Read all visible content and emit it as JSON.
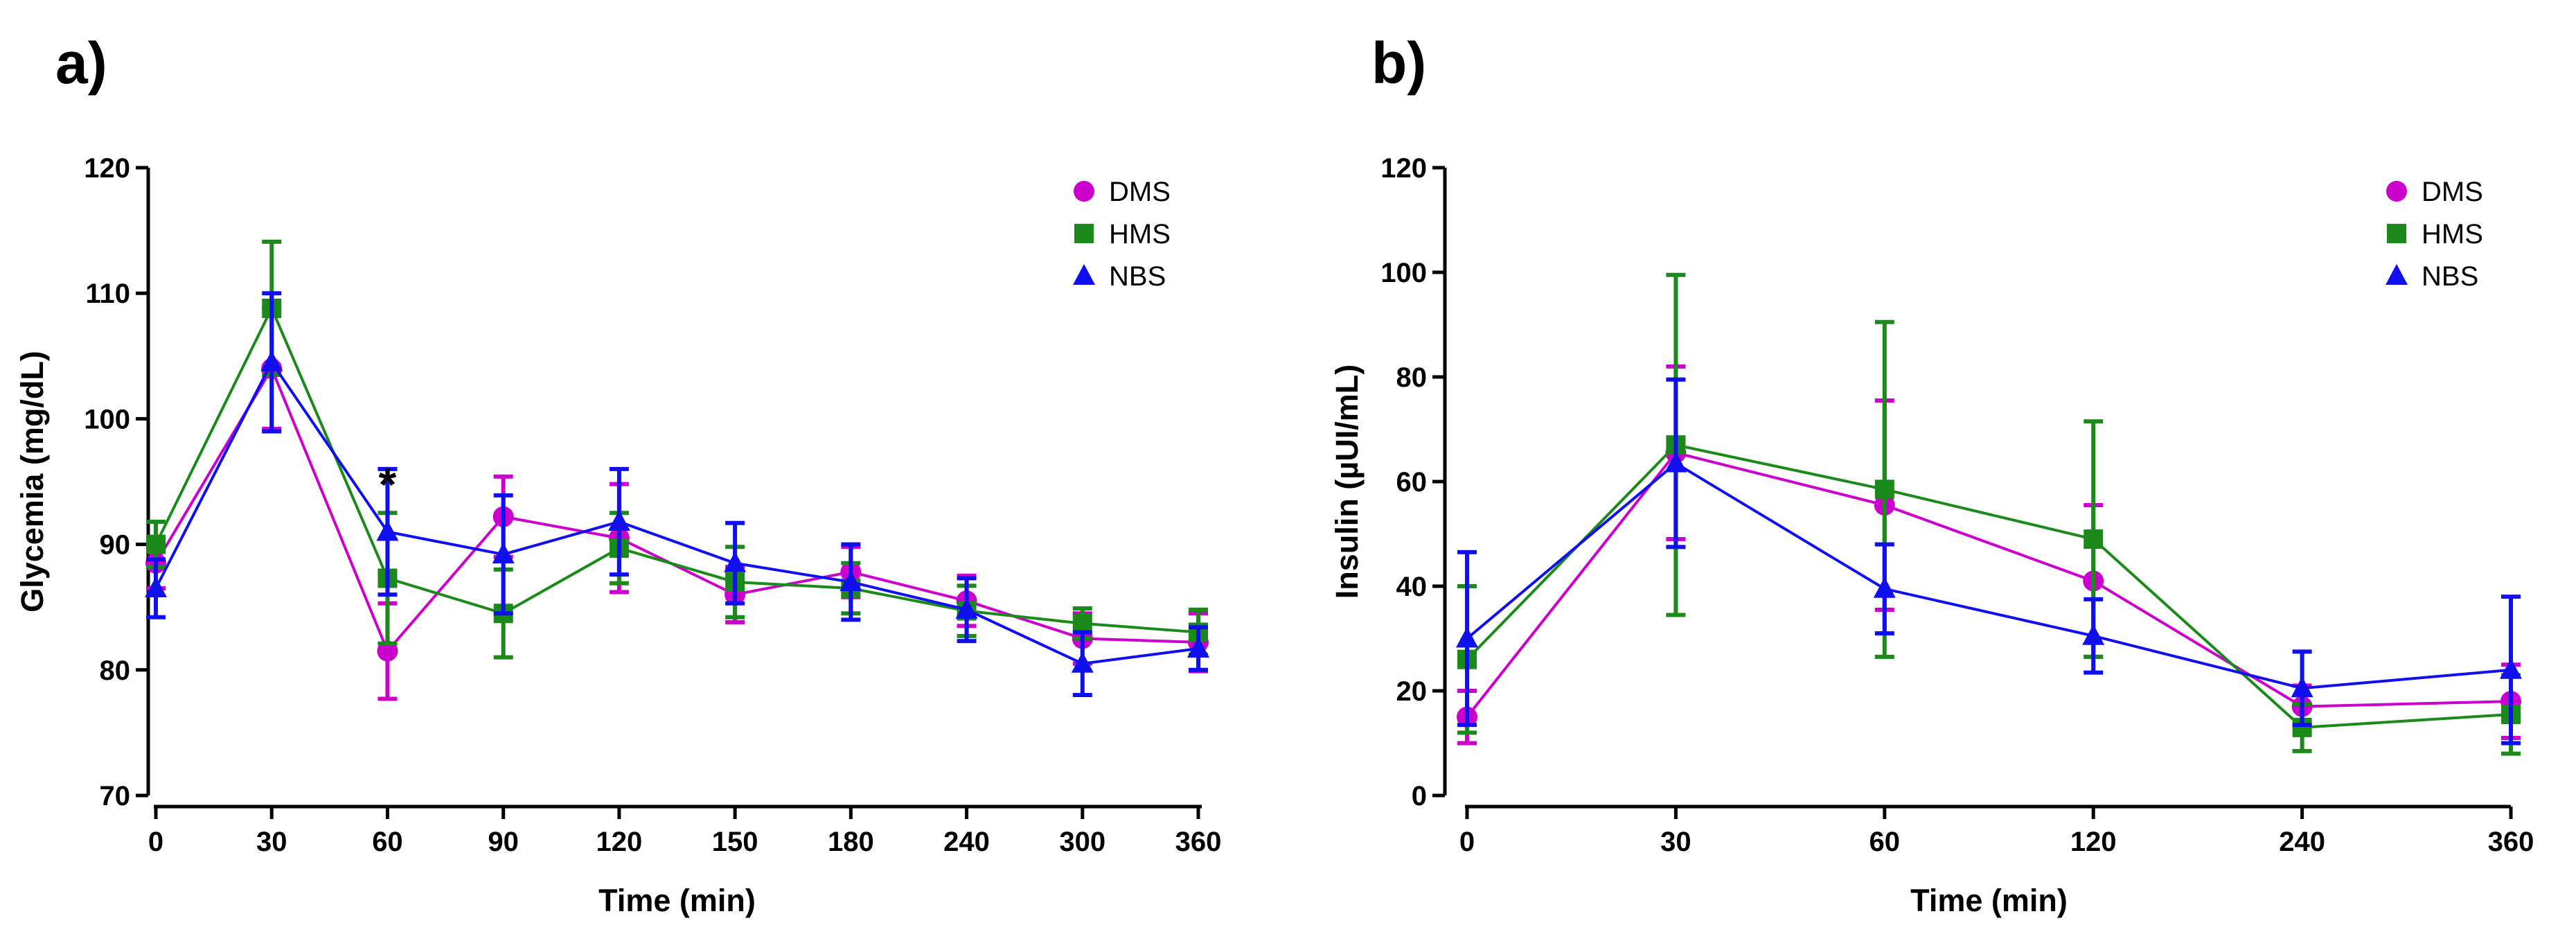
{
  "colors": {
    "DMS": "#CC00CC",
    "HMS": "#1B8A1B",
    "NBS": "#1010EE"
  },
  "chart_data": [
    {
      "panel_label": "a)",
      "type": "line",
      "xlabel": "Time (min)",
      "ylabel": "Glycemia (mg/dL)",
      "ylim": [
        70,
        120
      ],
      "yticks": [
        70,
        80,
        90,
        100,
        110,
        120
      ],
      "ytick_labels": [
        "70",
        "80",
        "90",
        "100",
        "110",
        "120"
      ],
      "categories": [
        "0",
        "30",
        "60",
        "90",
        "120",
        "150",
        "180",
        "240",
        "300",
        "360"
      ],
      "x_spacing": "categorical (evenly spaced)",
      "legend_position": "top-right",
      "annotations": [
        {
          "text": "*",
          "category": "60",
          "y": 95.5
        }
      ],
      "series": [
        {
          "name": "DMS",
          "marker": "circle",
          "values": [
            88.5,
            104.0,
            81.5,
            92.2,
            90.5,
            86.0,
            87.8,
            85.5,
            82.5,
            82.2
          ],
          "errors": [
            2.0,
            4.8,
            3.8,
            3.2,
            4.3,
            2.2,
            2.0,
            2.0,
            2.0,
            2.3
          ]
        },
        {
          "name": "HMS",
          "marker": "square",
          "values": [
            90.0,
            108.8,
            87.3,
            84.5,
            89.7,
            87.0,
            86.5,
            84.7,
            83.7,
            83.0
          ],
          "errors": [
            1.8,
            5.3,
            5.2,
            3.5,
            2.8,
            2.8,
            2.0,
            2.0,
            1.2,
            1.8
          ]
        },
        {
          "name": "NBS",
          "marker": "triangle",
          "values": [
            86.5,
            104.5,
            91.0,
            89.2,
            91.8,
            88.5,
            87.0,
            84.8,
            80.5,
            81.7
          ],
          "errors": [
            2.3,
            5.5,
            5.0,
            4.7,
            4.2,
            3.2,
            3.0,
            2.5,
            2.5,
            1.7
          ]
        }
      ]
    },
    {
      "panel_label": "b)",
      "type": "line",
      "xlabel": "Time (min)",
      "ylabel": "Insulin (µUI/mL)",
      "ylim": [
        0,
        120
      ],
      "yticks": [
        0,
        20,
        40,
        60,
        80,
        100,
        120
      ],
      "ytick_labels": [
        "0",
        "20",
        "40",
        "60",
        "80",
        "100",
        "120"
      ],
      "categories": [
        "0",
        "30",
        "60",
        "120",
        "240",
        "360"
      ],
      "x_spacing": "categorical (evenly spaced)",
      "legend_position": "top-right",
      "series": [
        {
          "name": "DMS",
          "marker": "circle",
          "values": [
            15.0,
            65.5,
            55.5,
            41.0,
            17.0,
            18.0
          ],
          "errors": [
            5.0,
            16.5,
            20.0,
            14.5,
            4.0,
            7.0
          ]
        },
        {
          "name": "HMS",
          "marker": "square",
          "values": [
            26.0,
            67.0,
            58.5,
            49.0,
            13.0,
            15.5
          ],
          "errors": [
            14.0,
            32.5,
            32.0,
            22.5,
            4.5,
            7.5
          ]
        },
        {
          "name": "NBS",
          "marker": "triangle",
          "values": [
            30.0,
            63.5,
            39.5,
            30.5,
            20.5,
            24.0
          ],
          "errors": [
            16.5,
            16.0,
            8.5,
            7.0,
            7.0,
            14.0
          ]
        }
      ]
    }
  ]
}
